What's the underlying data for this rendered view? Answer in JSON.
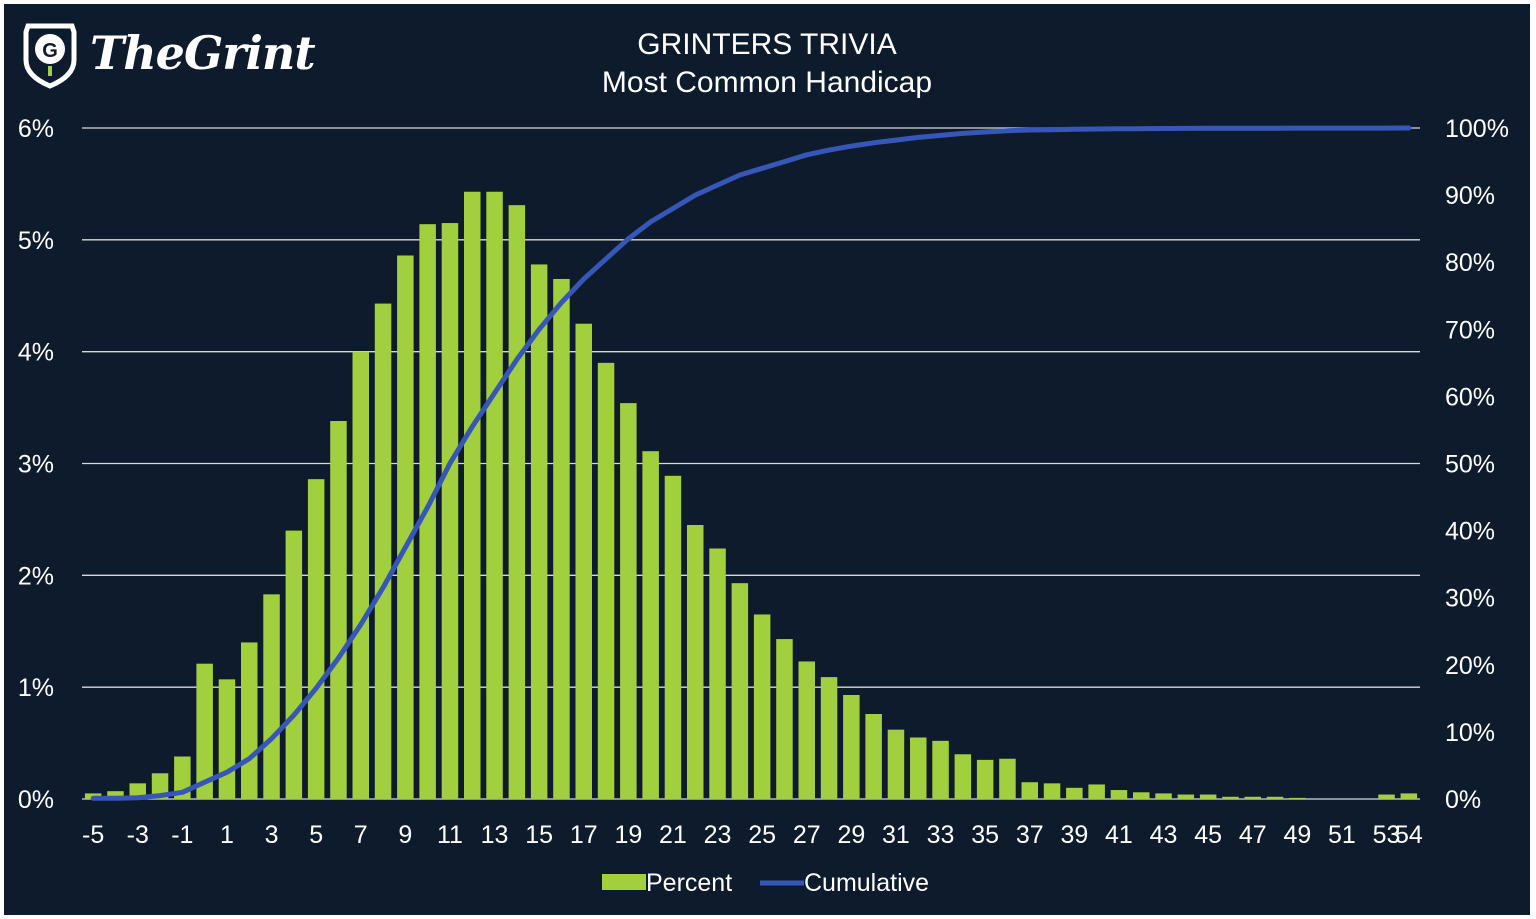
{
  "logo": {
    "text": "TheGrint",
    "icon": "golf-shield-g-icon"
  },
  "chart_data": {
    "type": "bar",
    "title": "GRINTERS TRIVIA",
    "subtitle": "Most Common Handicap",
    "xlabel": "",
    "ylabel": "",
    "ylim": [
      0,
      6
    ],
    "y2lim": [
      0,
      100
    ],
    "y_ticks": [
      "0%",
      "1%",
      "2%",
      "3%",
      "4%",
      "5%",
      "6%"
    ],
    "y2_ticks": [
      "0%",
      "10%",
      "20%",
      "30%",
      "40%",
      "50%",
      "60%",
      "70%",
      "80%",
      "90%",
      "100%"
    ],
    "x_tick_labels": [
      "-5",
      "-3",
      "-1",
      "1",
      "3",
      "5",
      "7",
      "9",
      "11",
      "13",
      "15",
      "17",
      "19",
      "21",
      "23",
      "25",
      "27",
      "29",
      "31",
      "33",
      "35",
      "37",
      "39",
      "41",
      "43",
      "45",
      "47",
      "49",
      "51",
      "53",
      "54"
    ],
    "grid": true,
    "legend_position": "bottom",
    "colors": {
      "background": "#0e1b2c",
      "bar": "#a2cf3e",
      "line": "#3656b8",
      "grid": "#d8d8d8",
      "text": "#ffffff"
    },
    "categories": [
      "-5",
      "-4",
      "-3",
      "-2",
      "-1",
      "0",
      "1",
      "2",
      "3",
      "4",
      "5",
      "6",
      "7",
      "8",
      "9",
      "10",
      "11",
      "12",
      "13",
      "14",
      "15",
      "16",
      "17",
      "18",
      "19",
      "20",
      "21",
      "22",
      "23",
      "24",
      "25",
      "26",
      "27",
      "28",
      "29",
      "30",
      "31",
      "32",
      "33",
      "34",
      "35",
      "36",
      "37",
      "38",
      "39",
      "40",
      "41",
      "42",
      "43",
      "44",
      "45",
      "46",
      "47",
      "48",
      "49",
      "50",
      "51",
      "52",
      "53",
      "54"
    ],
    "series": [
      {
        "name": "Percent",
        "type": "bar",
        "axis": "left",
        "values": [
          0.05,
          0.07,
          0.14,
          0.23,
          0.38,
          1.21,
          1.07,
          1.4,
          1.83,
          2.4,
          2.86,
          3.38,
          4.0,
          4.43,
          4.86,
          5.14,
          5.15,
          5.43,
          5.43,
          5.31,
          4.78,
          4.65,
          4.25,
          3.9,
          3.54,
          3.11,
          2.89,
          2.45,
          2.24,
          1.93,
          1.65,
          1.43,
          1.23,
          1.09,
          0.93,
          0.76,
          0.62,
          0.55,
          0.52,
          0.4,
          0.35,
          0.36,
          0.15,
          0.14,
          0.1,
          0.13,
          0.08,
          0.06,
          0.05,
          0.04,
          0.04,
          0.02,
          0.02,
          0.02,
          0.01,
          0.0,
          0.0,
          0.0,
          0.04,
          0.05
        ]
      },
      {
        "name": "Cumulative",
        "type": "line",
        "axis": "right",
        "values": [
          0.1,
          0.1,
          0.2,
          0.5,
          1.0,
          2.5,
          4.0,
          6.0,
          9.0,
          12.5,
          16.5,
          21.0,
          26.0,
          31.5,
          37.5,
          43.5,
          50.0,
          55.5,
          60.5,
          65.5,
          70.0,
          74.0,
          77.5,
          80.5,
          83.5,
          86.0,
          88.0,
          90.0,
          91.5,
          93.0,
          94.0,
          95.0,
          96.0,
          96.7,
          97.3,
          97.8,
          98.2,
          98.6,
          98.9,
          99.2,
          99.4,
          99.6,
          99.7,
          99.75,
          99.8,
          99.85,
          99.88,
          99.9,
          99.92,
          99.94,
          99.95,
          99.96,
          99.97,
          99.97,
          99.98,
          99.98,
          99.98,
          99.98,
          99.99,
          100.0
        ]
      }
    ]
  }
}
